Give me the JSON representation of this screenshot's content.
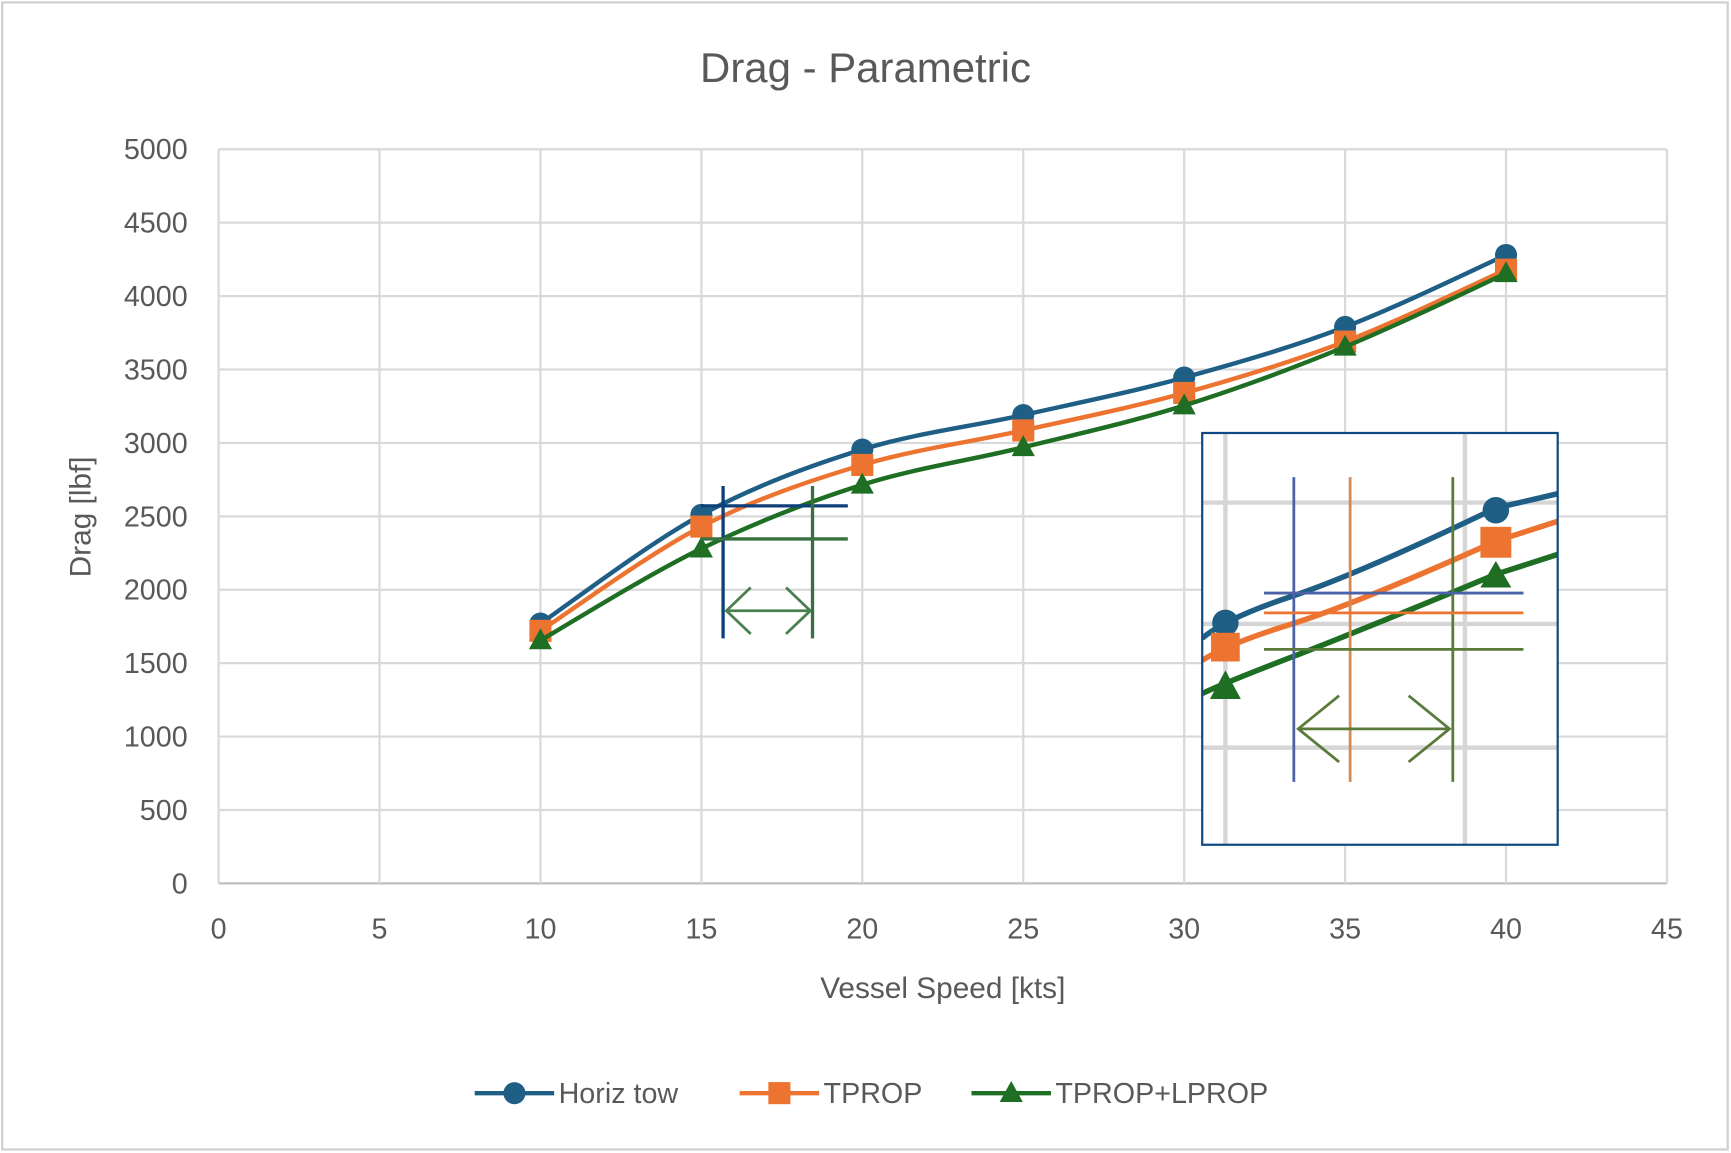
{
  "chart_data": {
    "type": "line",
    "title": "Drag - Parametric",
    "xlabel": "Vessel Speed [kts]",
    "ylabel": "Drag [lbf]",
    "xlim": [
      0,
      45
    ],
    "ylim": [
      0,
      5000
    ],
    "x_ticks": [
      0,
      5,
      10,
      15,
      20,
      25,
      30,
      35,
      40,
      45
    ],
    "y_ticks": [
      0,
      500,
      1000,
      1500,
      2000,
      2500,
      3000,
      3500,
      4000,
      4500,
      5000
    ],
    "grid": true,
    "legend_position": "bottom",
    "x": [
      10,
      15,
      20,
      25,
      30,
      35,
      40
    ],
    "series": [
      {
        "name": "Horiz tow",
        "marker": "circle",
        "color": "#1f5f86",
        "values": [
          1770,
          2510,
          2955,
          3190,
          3445,
          3790,
          4280
        ]
      },
      {
        "name": "TPROP",
        "marker": "square",
        "color": "#ed7430",
        "values": [
          1720,
          2430,
          2850,
          3085,
          3340,
          3690,
          4180
        ]
      },
      {
        "name": "TPROP+LPROP",
        "marker": "triangle",
        "color": "#1e6e24",
        "values": [
          1655,
          2280,
          2715,
          2970,
          3255,
          3655,
          4155
        ]
      }
    ],
    "annotation_colors": {
      "blue": "#0f3f7a",
      "green": "#3a7040",
      "inset_border": "#0f4a84"
    }
  }
}
